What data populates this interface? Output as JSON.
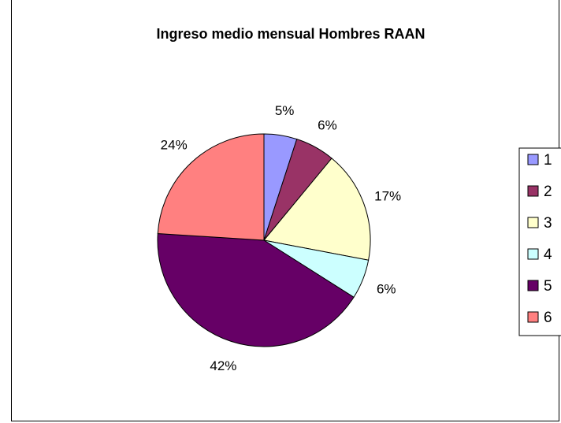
{
  "chart_data": {
    "type": "pie",
    "title": "Ingreso medio mensual Hombres RAAN",
    "categories": [
      "1",
      "2",
      "3",
      "4",
      "5",
      "6"
    ],
    "values": [
      5,
      6,
      17,
      6,
      42,
      24
    ],
    "labels": [
      "5%",
      "6%",
      "17%",
      "6%",
      "42%",
      "24%"
    ],
    "colors": [
      "#9999ff",
      "#993366",
      "#ffffcc",
      "#ccffff",
      "#660066",
      "#ff8080"
    ],
    "legend_position": "right"
  }
}
